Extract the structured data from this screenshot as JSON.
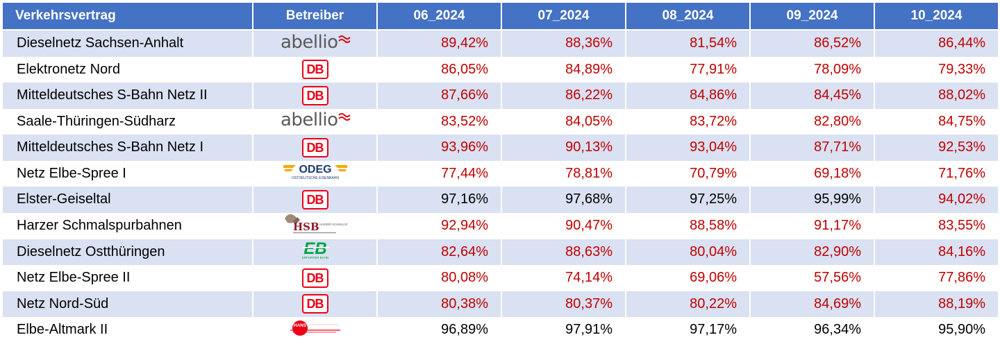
{
  "headers": [
    "Verkehrsvertrag",
    "Betreiber",
    "06_2024",
    "07_2024",
    "08_2024",
    "09_2024",
    "10_2024"
  ],
  "rows": [
    {
      "name": "Dieselnetz Sachsen-Anhalt",
      "operator": "abellio",
      "values": [
        "89,42%",
        "88,36%",
        "81,54%",
        "86,52%",
        "86,44%"
      ],
      "colors": [
        "red",
        "red",
        "red",
        "red",
        "red"
      ]
    },
    {
      "name": "Elektronetz Nord",
      "operator": "DB",
      "values": [
        "86,05%",
        "84,89%",
        "77,91%",
        "78,09%",
        "79,33%"
      ],
      "colors": [
        "red",
        "red",
        "red",
        "red",
        "red"
      ]
    },
    {
      "name": "Mitteldeutsches S-Bahn Netz II",
      "operator": "DB",
      "values": [
        "87,66%",
        "86,22%",
        "84,86%",
        "84,45%",
        "88,02%"
      ],
      "colors": [
        "red",
        "red",
        "red",
        "red",
        "red"
      ]
    },
    {
      "name": "Saale-Thüringen-Südharz",
      "operator": "abellio",
      "values": [
        "83,52%",
        "84,05%",
        "83,72%",
        "82,80%",
        "84,75%"
      ],
      "colors": [
        "red",
        "red",
        "red",
        "red",
        "red"
      ]
    },
    {
      "name": "Mitteldeutsches S-Bahn Netz I",
      "operator": "DB",
      "values": [
        "93,96%",
        "90,13%",
        "93,04%",
        "87,71%",
        "92,53%"
      ],
      "colors": [
        "red",
        "red",
        "red",
        "red",
        "red"
      ]
    },
    {
      "name": "Netz Elbe-Spree I",
      "operator": "ODEG",
      "values": [
        "77,44%",
        "78,81%",
        "70,79%",
        "69,18%",
        "71,76%"
      ],
      "colors": [
        "red",
        "red",
        "red",
        "red",
        "red"
      ]
    },
    {
      "name": "Elster-Geiseltal",
      "operator": "DB",
      "values": [
        "97,16%",
        "97,68%",
        "97,25%",
        "95,99%",
        "94,02%"
      ],
      "colors": [
        "black",
        "black",
        "black",
        "black",
        "red"
      ]
    },
    {
      "name": "Harzer Schmalspurbahnen",
      "operator": "HSB",
      "values": [
        "92,94%",
        "90,47%",
        "88,58%",
        "91,17%",
        "83,55%"
      ],
      "colors": [
        "red",
        "red",
        "red",
        "red",
        "red"
      ]
    },
    {
      "name": "Dieselnetz Ostthüringen",
      "operator": "EB",
      "values": [
        "82,64%",
        "88,63%",
        "80,04%",
        "82,90%",
        "84,16%"
      ],
      "colors": [
        "red",
        "red",
        "red",
        "red",
        "red"
      ]
    },
    {
      "name": "Netz Elbe-Spree II",
      "operator": "DB",
      "values": [
        "80,08%",
        "74,14%",
        "69,06%",
        "57,56%",
        "77,86%"
      ],
      "colors": [
        "red",
        "red",
        "red",
        "red",
        "red"
      ]
    },
    {
      "name": "Netz Nord-Süd",
      "operator": "DB",
      "values": [
        "80,38%",
        "80,37%",
        "80,22%",
        "84,69%",
        "88,19%"
      ],
      "colors": [
        "red",
        "red",
        "red",
        "red",
        "red"
      ]
    },
    {
      "name": "Elbe-Altmark II",
      "operator": "HANS",
      "values": [
        "96,89%",
        "97,91%",
        "97,17%",
        "96,34%",
        "95,90%"
      ],
      "colors": [
        "black",
        "black",
        "black",
        "black",
        "black"
      ]
    }
  ],
  "logo_text": {
    "abellio": "abellio",
    "DB": "DB",
    "ODEG": "ODEG",
    "ODEG_sub": "OSTDEUTSCHE EISENBAHN",
    "HSB": "HSB",
    "HSB_sub": "HARZER SCHMALSPUR BAHNEN",
    "EB": "EB",
    "EB_sub": "ERFURTER BAHN",
    "HANS": "HANS"
  },
  "colors": {
    "header_bg": "#4472c4",
    "band": "#d9e1f2",
    "below_target": "#c00000",
    "db_red": "#ec0016",
    "abellio_grey": "#5a5a5a",
    "abellio_red": "#e30613",
    "odeg_orange": "#f5a800",
    "odeg_blue": "#1a3a6e",
    "eb_green": "#00a040",
    "hsb_red": "#8b1a2b"
  }
}
